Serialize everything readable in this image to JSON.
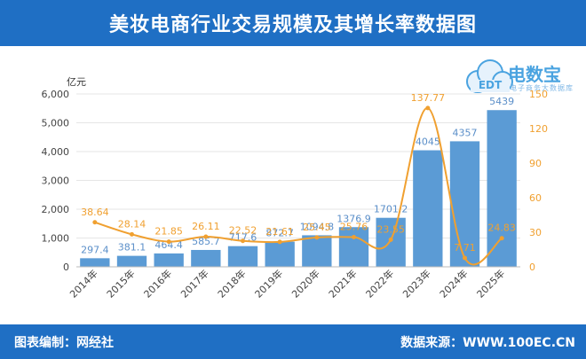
{
  "header": {
    "title": "美妆电商行业交易规模及其增长率数据图"
  },
  "footer": {
    "credit": "图表编制：网经社",
    "source": "数据来源：WWW.100EC.CN"
  },
  "logo": {
    "brand": "电数宝",
    "sub": "电子商务大数据库",
    "cloud_text": "EDT"
  },
  "chart_data": {
    "type": "bar",
    "y_unit_label": "亿元",
    "categories": [
      "2014年",
      "2015年",
      "2016年",
      "2017年",
      "2018年",
      "2019年",
      "2020年",
      "2021年",
      "2022年",
      "2023年",
      "2024年",
      "2025年"
    ],
    "ylim": [
      0,
      6000
    ],
    "yticks": [
      0,
      1000,
      2000,
      3000,
      4000,
      5000,
      6000
    ],
    "ytick_labels": [
      "0",
      "1,000",
      "2,000",
      "3,000",
      "4,000",
      "5,000",
      "6,000"
    ],
    "y2lim": [
      0,
      150
    ],
    "y2ticks": [
      0,
      30,
      60,
      90,
      120,
      150
    ],
    "series": [
      {
        "kind": "bar",
        "axis": "left",
        "color": "#5b9bd5",
        "values": [
          297.4,
          381.1,
          464.4,
          585.7,
          717.6,
          872.7,
          1094.8,
          1376.9,
          1701.2,
          4045,
          4357,
          5439
        ],
        "labels": [
          "297.4",
          "381.1",
          "464.4",
          "585.7",
          "717.6",
          "872.7",
          "1094.8",
          "1376.9",
          "1701.2",
          "4045",
          "4357",
          "5439"
        ]
      },
      {
        "kind": "line",
        "axis": "right",
        "color": "#f0a030",
        "values": [
          38.64,
          28.14,
          21.85,
          26.11,
          22.52,
          21.61,
          25.45,
          25.76,
          23.55,
          137.77,
          7.71,
          24.83
        ],
        "labels": [
          "38.64",
          "28.14",
          "21.85",
          "26.11",
          "22.52",
          "21.61",
          "25.45",
          "25.76",
          "23.55",
          "137.77",
          "7.71",
          "24.83"
        ]
      }
    ]
  }
}
